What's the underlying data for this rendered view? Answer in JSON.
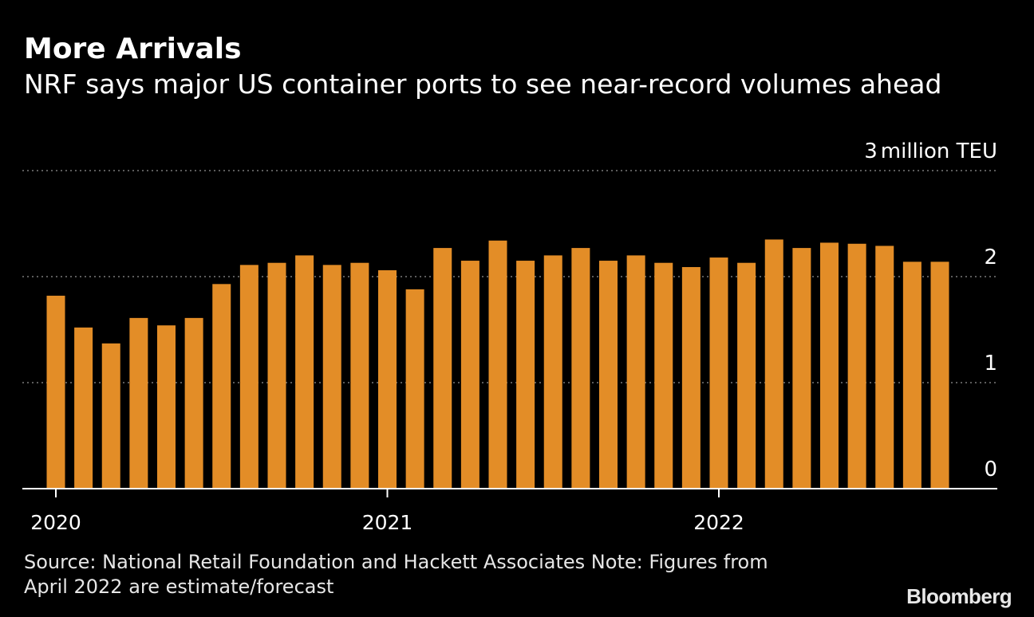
{
  "colors": {
    "background": "#000000",
    "bar": "#e38d27",
    "gridline": "#7a7a7a",
    "text": "#ffffff"
  },
  "chart_data": {
    "type": "bar",
    "title": "More Arrivals",
    "subtitle": "NRF says major US container ports to see near-record volumes ahead",
    "unit_label": "million TEU",
    "ylim": [
      0,
      3
    ],
    "yticks": [
      0,
      1,
      2,
      3
    ],
    "grid": true,
    "y_axis_side": "right",
    "x_year_ticks": [
      {
        "label": "2020",
        "index": 0
      },
      {
        "label": "2021",
        "index": 12
      },
      {
        "label": "2022",
        "index": 24
      }
    ],
    "categories": [
      "2020-01",
      "2020-02",
      "2020-03",
      "2020-04",
      "2020-05",
      "2020-06",
      "2020-07",
      "2020-08",
      "2020-09",
      "2020-10",
      "2020-11",
      "2020-12",
      "2021-01",
      "2021-02",
      "2021-03",
      "2021-04",
      "2021-05",
      "2021-06",
      "2021-07",
      "2021-08",
      "2021-09",
      "2021-10",
      "2021-11",
      "2021-12",
      "2022-01",
      "2022-02",
      "2022-03",
      "2022-04",
      "2022-05",
      "2022-06",
      "2022-07",
      "2022-08",
      "2022-09"
    ],
    "values": [
      1.82,
      1.52,
      1.37,
      1.61,
      1.54,
      1.61,
      1.93,
      2.11,
      2.13,
      2.2,
      2.11,
      2.13,
      2.06,
      1.88,
      2.27,
      2.15,
      2.34,
      2.15,
      2.2,
      2.27,
      2.15,
      2.2,
      2.13,
      2.09,
      2.18,
      2.13,
      2.35,
      2.27,
      2.32,
      2.31,
      2.29,
      2.14,
      2.14
    ]
  },
  "source_text": "Source: National Retail Foundation and Hackett Associates Note: Figures from April 2022 are estimate/forecast",
  "logo_text": "Bloomberg"
}
